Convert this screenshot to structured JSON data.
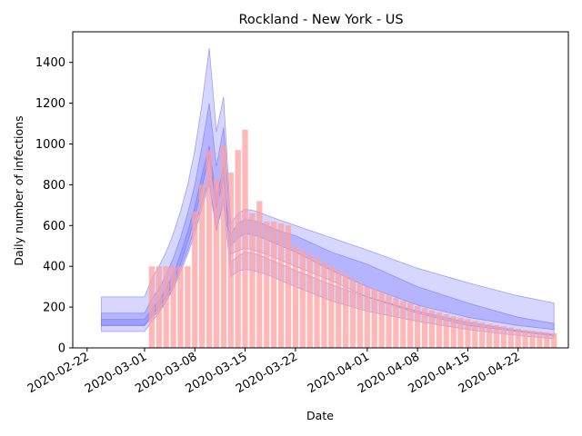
{
  "chart_data": {
    "type": "bar",
    "title": "Rockland - New York - US",
    "xlabel": "Date",
    "ylabel": "Daily number of infections",
    "ylim": [
      0,
      1550
    ],
    "xlim": [
      "2020-02-20",
      "2020-04-29"
    ],
    "yticks": [
      0,
      200,
      400,
      600,
      800,
      1000,
      1200,
      1400
    ],
    "xticks": [
      "2020-02-22",
      "2020-03-01",
      "2020-03-08",
      "2020-03-15",
      "2020-03-22",
      "2020-04-01",
      "2020-04-08",
      "2020-04-15",
      "2020-04-22"
    ],
    "grid": false,
    "colors": {
      "bars": "#ff9f9f",
      "bands": "#6a6aff",
      "spine": "#000000"
    },
    "bars": {
      "dates": [
        "2020-03-02",
        "2020-03-03",
        "2020-03-04",
        "2020-03-05",
        "2020-03-06",
        "2020-03-07",
        "2020-03-08",
        "2020-03-09",
        "2020-03-10",
        "2020-03-11",
        "2020-03-12",
        "2020-03-13",
        "2020-03-14",
        "2020-03-15",
        "2020-03-16",
        "2020-03-17",
        "2020-03-18",
        "2020-03-19",
        "2020-03-20",
        "2020-03-21",
        "2020-03-22",
        "2020-03-23",
        "2020-03-24",
        "2020-03-25",
        "2020-03-26",
        "2020-03-27",
        "2020-03-28",
        "2020-03-29",
        "2020-03-30",
        "2020-03-31",
        "2020-04-01",
        "2020-04-02",
        "2020-04-03",
        "2020-04-04",
        "2020-04-05",
        "2020-04-06",
        "2020-04-07",
        "2020-04-08",
        "2020-04-09",
        "2020-04-10",
        "2020-04-11",
        "2020-04-12",
        "2020-04-13",
        "2020-04-14",
        "2020-04-15",
        "2020-04-16",
        "2020-04-17",
        "2020-04-18",
        "2020-04-19",
        "2020-04-20",
        "2020-04-21",
        "2020-04-22",
        "2020-04-23",
        "2020-04-24",
        "2020-04-25",
        "2020-04-26",
        "2020-04-27"
      ],
      "values": [
        400,
        400,
        400,
        400,
        400,
        400,
        670,
        800,
        970,
        830,
        990,
        860,
        970,
        1070,
        660,
        720,
        620,
        620,
        610,
        600,
        500,
        480,
        460,
        440,
        420,
        400,
        380,
        360,
        340,
        320,
        300,
        290,
        275,
        260,
        245,
        230,
        220,
        205,
        195,
        185,
        175,
        165,
        155,
        148,
        140,
        132,
        125,
        118,
        112,
        106,
        100,
        94,
        88,
        84,
        80,
        76,
        72
      ]
    },
    "bands": {
      "dates": [
        "2020-02-24",
        "2020-03-01",
        "2020-03-02",
        "2020-03-03",
        "2020-03-04",
        "2020-03-05",
        "2020-03-06",
        "2020-03-07",
        "2020-03-08",
        "2020-03-09",
        "2020-03-10",
        "2020-03-11",
        "2020-03-12",
        "2020-03-13",
        "2020-03-14",
        "2020-03-15",
        "2020-03-16",
        "2020-03-17",
        "2020-03-18",
        "2020-03-20",
        "2020-03-22",
        "2020-03-27",
        "2020-04-01",
        "2020-04-08",
        "2020-04-15",
        "2020-04-22",
        "2020-04-27"
      ],
      "outer_low": [
        80,
        80,
        130,
        170,
        230,
        300,
        390,
        480,
        590,
        720,
        820,
        570,
        730,
        460,
        475,
        490,
        480,
        470,
        460,
        430,
        400,
        330,
        250,
        170,
        110,
        80,
        60
      ],
      "outer_high": [
        250,
        250,
        340,
        400,
        470,
        560,
        670,
        800,
        970,
        1200,
        1470,
        1060,
        1230,
        610,
        660,
        680,
        675,
        665,
        650,
        625,
        600,
        540,
        480,
        390,
        320,
        255,
        220
      ],
      "inner_low": [
        110,
        110,
        160,
        200,
        250,
        320,
        410,
        520,
        640,
        790,
        940,
        680,
        840,
        500,
        540,
        560,
        555,
        545,
        530,
        500,
        470,
        380,
        300,
        210,
        150,
        110,
        90
      ],
      "inner_high": [
        170,
        170,
        240,
        290,
        360,
        440,
        540,
        660,
        800,
        990,
        1200,
        890,
        1080,
        560,
        610,
        630,
        625,
        615,
        600,
        570,
        550,
        470,
        410,
        300,
        220,
        150,
        120
      ],
      "core_low": [
        110,
        110,
        150,
        180,
        230,
        290,
        370,
        460,
        560,
        690,
        800,
        580,
        710,
        350,
        375,
        385,
        380,
        370,
        360,
        330,
        300,
        230,
        180,
        130,
        90,
        60,
        45
      ],
      "core_high": [
        140,
        140,
        190,
        230,
        290,
        360,
        460,
        570,
        690,
        850,
        990,
        730,
        890,
        420,
        450,
        470,
        465,
        455,
        440,
        410,
        380,
        310,
        250,
        180,
        125,
        85,
        65
      ]
    }
  }
}
